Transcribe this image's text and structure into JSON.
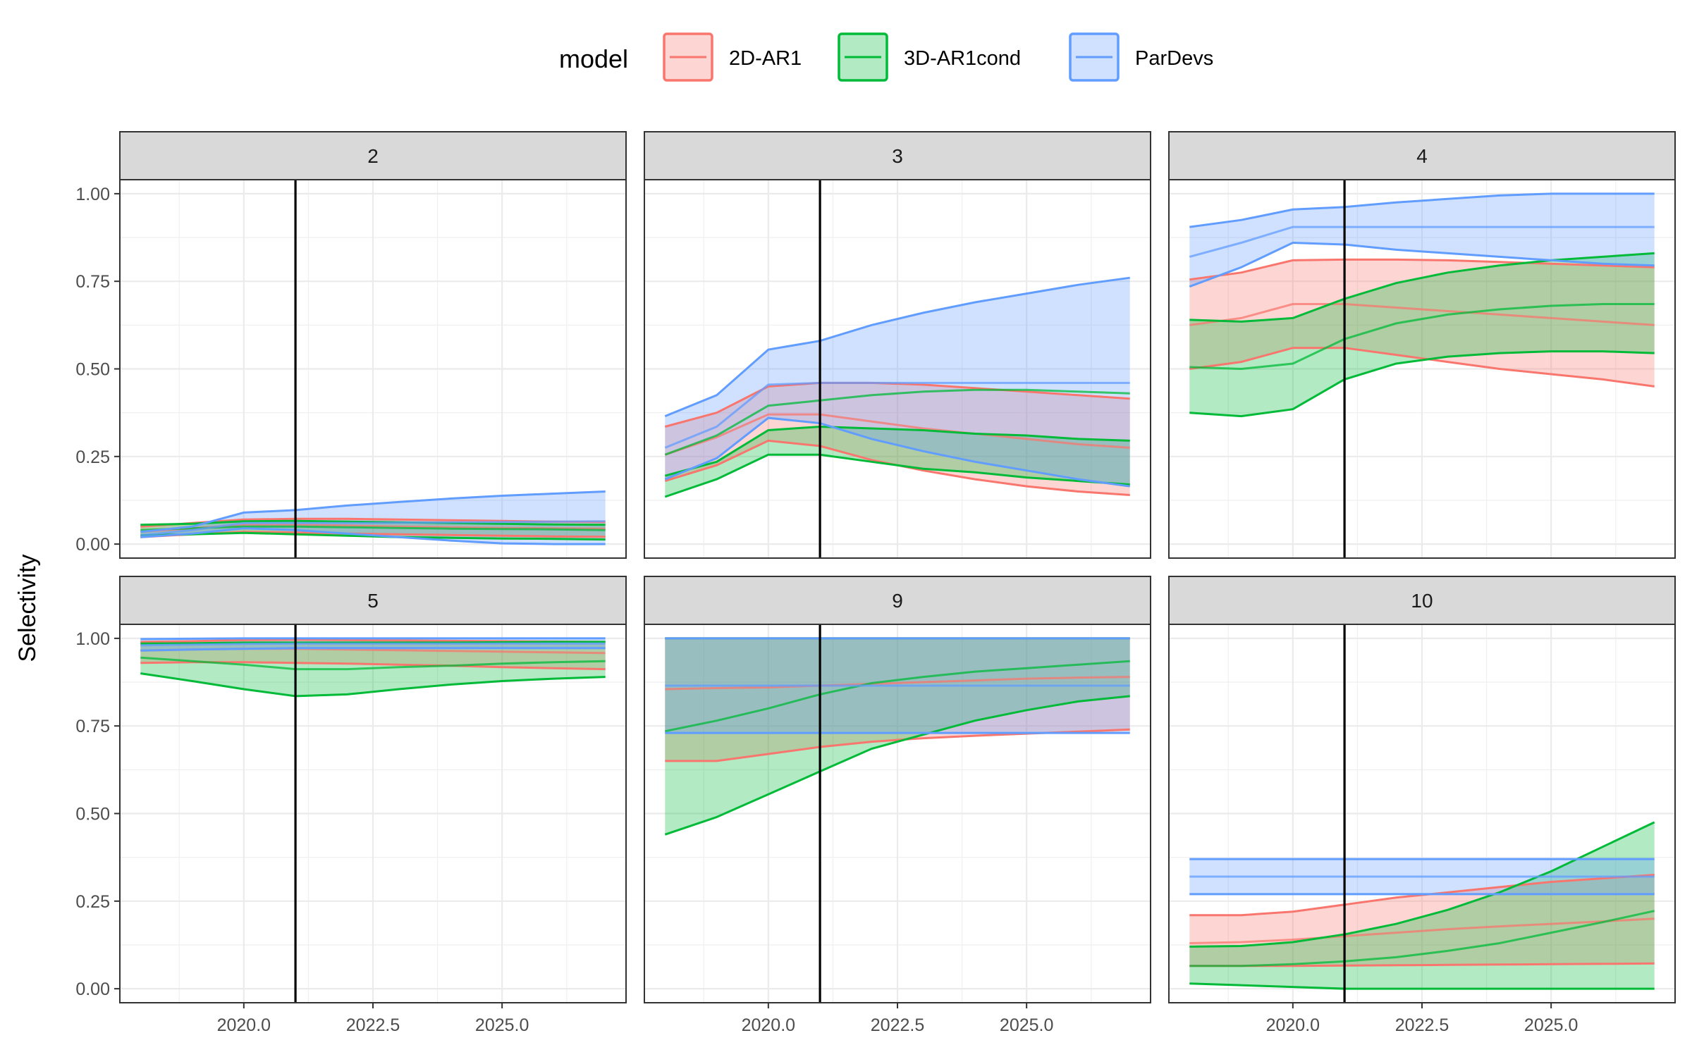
{
  "chart_data": {
    "type": "area",
    "title": "",
    "ylabel": "Selectivity",
    "xlabel": "",
    "facet_labels": [
      "2",
      "3",
      "4",
      "5",
      "9",
      "10"
    ],
    "xlim": [
      2017.6,
      2027.4
    ],
    "ylim": [
      -0.04,
      1.04
    ],
    "x_ticks": [
      2020.0,
      2022.5,
      2025.0
    ],
    "x_tick_labels": [
      "2020.0",
      "2022.5",
      "2025.0"
    ],
    "y_ticks": [
      0,
      0.25,
      0.5,
      0.75,
      1.0
    ],
    "y_tick_labels": [
      "0.00",
      "0.25",
      "0.50",
      "0.75",
      "1.00"
    ],
    "vline_x": 2021,
    "grid": true,
    "legend": {
      "title": "model",
      "position": "top",
      "entries": [
        "2D-AR1",
        "3D-AR1cond",
        "ParDevs"
      ]
    },
    "colors": {
      "2D-AR1": "#F8766D",
      "3D-AR1cond": "#00BA38",
      "ParDevs": "#619CFF"
    },
    "x": [
      2018,
      2019,
      2020,
      2021,
      2022,
      2023,
      2024,
      2025,
      2026,
      2027
    ],
    "panels": [
      {
        "facet": "2",
        "series": [
          {
            "name": "2D-AR1",
            "mid": [
              0.035,
              0.045,
              0.055,
              0.055,
              0.053,
              0.05,
              0.048,
              0.046,
              0.045,
              0.044
            ],
            "lower": [
              0.02,
              0.028,
              0.035,
              0.033,
              0.03,
              0.028,
              0.026,
              0.024,
              0.022,
              0.021
            ],
            "upper": [
              0.05,
              0.06,
              0.07,
              0.072,
              0.072,
              0.07,
              0.068,
              0.066,
              0.064,
              0.063
            ]
          },
          {
            "name": "3D-AR1cond",
            "mid": [
              0.04,
              0.045,
              0.05,
              0.05,
              0.048,
              0.046,
              0.044,
              0.043,
              0.042,
              0.04
            ],
            "lower": [
              0.025,
              0.028,
              0.032,
              0.028,
              0.024,
              0.02,
              0.018,
              0.016,
              0.015,
              0.013
            ],
            "upper": [
              0.055,
              0.058,
              0.065,
              0.066,
              0.064,
              0.062,
              0.06,
              0.058,
              0.056,
              0.055
            ]
          },
          {
            "name": "ParDevs",
            "mid": [
              0.025,
              0.04,
              0.06,
              0.06,
              0.06,
              0.061,
              0.062,
              0.063,
              0.064,
              0.065
            ],
            "lower": [
              0.02,
              0.03,
              0.045,
              0.04,
              0.03,
              0.02,
              0.01,
              0.002,
              0.0,
              0.0
            ],
            "upper": [
              0.035,
              0.05,
              0.09,
              0.097,
              0.11,
              0.12,
              0.13,
              0.138,
              0.144,
              0.15
            ]
          }
        ]
      },
      {
        "facet": "3",
        "series": [
          {
            "name": "2D-AR1",
            "mid": [
              0.255,
              0.305,
              0.37,
              0.37,
              0.35,
              0.33,
              0.315,
              0.3,
              0.285,
              0.275
            ],
            "lower": [
              0.18,
              0.225,
              0.295,
              0.28,
              0.24,
              0.21,
              0.185,
              0.165,
              0.15,
              0.14
            ],
            "upper": [
              0.335,
              0.375,
              0.45,
              0.46,
              0.46,
              0.455,
              0.445,
              0.435,
              0.425,
              0.415
            ]
          },
          {
            "name": "3D-AR1cond",
            "mid": [
              0.255,
              0.31,
              0.395,
              0.41,
              0.425,
              0.435,
              0.44,
              0.44,
              0.435,
              0.43
            ],
            "lower": [
              0.135,
              0.185,
              0.255,
              0.255,
              0.235,
              0.215,
              0.205,
              0.19,
              0.18,
              0.17
            ],
            "upper": [
              0.195,
              0.235,
              0.325,
              0.335,
              0.33,
              0.325,
              0.315,
              0.31,
              0.3,
              0.295
            ]
          },
          {
            "name": "ParDevs",
            "mid": [
              0.275,
              0.335,
              0.455,
              0.46,
              0.46,
              0.46,
              0.46,
              0.46,
              0.46,
              0.46
            ],
            "lower": [
              0.185,
              0.245,
              0.36,
              0.345,
              0.3,
              0.265,
              0.235,
              0.21,
              0.185,
              0.165
            ],
            "upper": [
              0.365,
              0.425,
              0.555,
              0.58,
              0.625,
              0.66,
              0.69,
              0.715,
              0.74,
              0.76
            ]
          }
        ]
      },
      {
        "facet": "4",
        "series": [
          {
            "name": "2D-AR1",
            "mid": [
              0.625,
              0.645,
              0.685,
              0.685,
              0.675,
              0.665,
              0.655,
              0.645,
              0.635,
              0.625
            ],
            "lower": [
              0.5,
              0.52,
              0.56,
              0.56,
              0.54,
              0.52,
              0.5,
              0.485,
              0.47,
              0.45
            ],
            "upper": [
              0.755,
              0.775,
              0.81,
              0.812,
              0.812,
              0.81,
              0.805,
              0.8,
              0.795,
              0.79
            ]
          },
          {
            "name": "3D-AR1cond",
            "mid": [
              0.505,
              0.5,
              0.515,
              0.585,
              0.63,
              0.655,
              0.67,
              0.68,
              0.685,
              0.685
            ],
            "lower": [
              0.375,
              0.365,
              0.385,
              0.47,
              0.515,
              0.535,
              0.545,
              0.55,
              0.55,
              0.545
            ],
            "upper": [
              0.64,
              0.635,
              0.645,
              0.7,
              0.745,
              0.775,
              0.795,
              0.81,
              0.82,
              0.83
            ]
          },
          {
            "name": "ParDevs",
            "mid": [
              0.82,
              0.86,
              0.905,
              0.905,
              0.905,
              0.905,
              0.905,
              0.905,
              0.905,
              0.905
            ],
            "lower": [
              0.735,
              0.79,
              0.86,
              0.855,
              0.84,
              0.83,
              0.82,
              0.81,
              0.8,
              0.795
            ],
            "upper": [
              0.905,
              0.925,
              0.955,
              0.962,
              0.975,
              0.985,
              0.995,
              1.0,
              1.0,
              1.0
            ]
          }
        ]
      },
      {
        "facet": "5",
        "series": [
          {
            "name": "2D-AR1",
            "mid": [
              0.965,
              0.968,
              0.97,
              0.97,
              0.968,
              0.966,
              0.964,
              0.962,
              0.96,
              0.958
            ],
            "lower": [
              0.93,
              0.932,
              0.932,
              0.93,
              0.928,
              0.925,
              0.922,
              0.918,
              0.915,
              0.912
            ],
            "upper": [
              0.99,
              0.992,
              0.995,
              0.996,
              0.995,
              0.994,
              0.993,
              0.992,
              0.991,
              0.99
            ]
          },
          {
            "name": "3D-AR1cond",
            "mid": [
              0.945,
              0.935,
              0.925,
              0.912,
              0.912,
              0.918,
              0.922,
              0.928,
              0.932,
              0.935
            ],
            "lower": [
              0.9,
              0.878,
              0.855,
              0.835,
              0.84,
              0.855,
              0.868,
              0.878,
              0.885,
              0.89
            ],
            "upper": [
              0.985,
              0.986,
              0.988,
              0.988,
              0.988,
              0.988,
              0.988,
              0.989,
              0.99,
              0.99
            ]
          },
          {
            "name": "ParDevs",
            "mid": [
              0.98,
              0.982,
              0.984,
              0.985,
              0.985,
              0.985,
              0.985,
              0.985,
              0.985,
              0.985
            ],
            "lower": [
              0.965,
              0.968,
              0.97,
              0.972,
              0.972,
              0.972,
              0.972,
              0.972,
              0.972,
              0.972
            ],
            "upper": [
              0.998,
              0.999,
              1.0,
              1.0,
              1.0,
              1.0,
              1.0,
              1.0,
              1.0,
              1.0
            ]
          }
        ]
      },
      {
        "facet": "9",
        "series": [
          {
            "name": "2D-AR1",
            "mid": [
              0.855,
              0.858,
              0.86,
              0.865,
              0.87,
              0.875,
              0.88,
              0.885,
              0.888,
              0.89
            ],
            "lower": [
              0.65,
              0.65,
              0.67,
              0.69,
              0.705,
              0.715,
              0.722,
              0.728,
              0.734,
              0.74
            ],
            "upper": [
              1.0,
              1.0,
              1.0,
              1.0,
              1.0,
              1.0,
              1.0,
              1.0,
              1.0,
              1.0
            ]
          },
          {
            "name": "3D-AR1cond",
            "mid": [
              0.735,
              0.765,
              0.8,
              0.84,
              0.872,
              0.89,
              0.905,
              0.915,
              0.925,
              0.935
            ],
            "lower": [
              0.44,
              0.49,
              0.555,
              0.62,
              0.685,
              0.725,
              0.765,
              0.795,
              0.82,
              0.835
            ],
            "upper": [
              1.0,
              1.0,
              1.0,
              1.0,
              1.0,
              1.0,
              1.0,
              1.0,
              1.0,
              1.0
            ]
          },
          {
            "name": "ParDevs",
            "mid": [
              0.865,
              0.865,
              0.865,
              0.865,
              0.865,
              0.865,
              0.865,
              0.865,
              0.865,
              0.865
            ],
            "lower": [
              0.73,
              0.73,
              0.73,
              0.73,
              0.73,
              0.73,
              0.73,
              0.73,
              0.73,
              0.73
            ],
            "upper": [
              1.0,
              1.0,
              1.0,
              1.0,
              1.0,
              1.0,
              1.0,
              1.0,
              1.0,
              1.0
            ]
          }
        ]
      },
      {
        "facet": "10",
        "series": [
          {
            "name": "2D-AR1",
            "mid": [
              0.13,
              0.133,
              0.14,
              0.15,
              0.16,
              0.17,
              0.178,
              0.185,
              0.192,
              0.2
            ],
            "lower": [
              0.065,
              0.065,
              0.065,
              0.066,
              0.067,
              0.068,
              0.069,
              0.07,
              0.071,
              0.072
            ],
            "upper": [
              0.21,
              0.21,
              0.22,
              0.24,
              0.26,
              0.275,
              0.29,
              0.305,
              0.315,
              0.325
            ]
          },
          {
            "name": "3D-AR1cond",
            "mid": [
              0.065,
              0.065,
              0.07,
              0.078,
              0.09,
              0.108,
              0.13,
              0.16,
              0.19,
              0.222
            ],
            "lower": [
              0.015,
              0.01,
              0.005,
              0.0,
              0.0,
              0.0,
              0.0,
              0.0,
              0.0,
              0.0
            ],
            "upper": [
              0.12,
              0.122,
              0.133,
              0.155,
              0.185,
              0.225,
              0.275,
              0.335,
              0.405,
              0.475
            ]
          },
          {
            "name": "ParDevs",
            "mid": [
              0.32,
              0.32,
              0.32,
              0.32,
              0.32,
              0.32,
              0.32,
              0.32,
              0.32,
              0.32
            ],
            "lower": [
              0.27,
              0.27,
              0.27,
              0.27,
              0.27,
              0.27,
              0.27,
              0.27,
              0.27,
              0.27
            ],
            "upper": [
              0.37,
              0.37,
              0.37,
              0.37,
              0.37,
              0.37,
              0.37,
              0.37,
              0.37,
              0.37
            ]
          }
        ]
      }
    ]
  }
}
